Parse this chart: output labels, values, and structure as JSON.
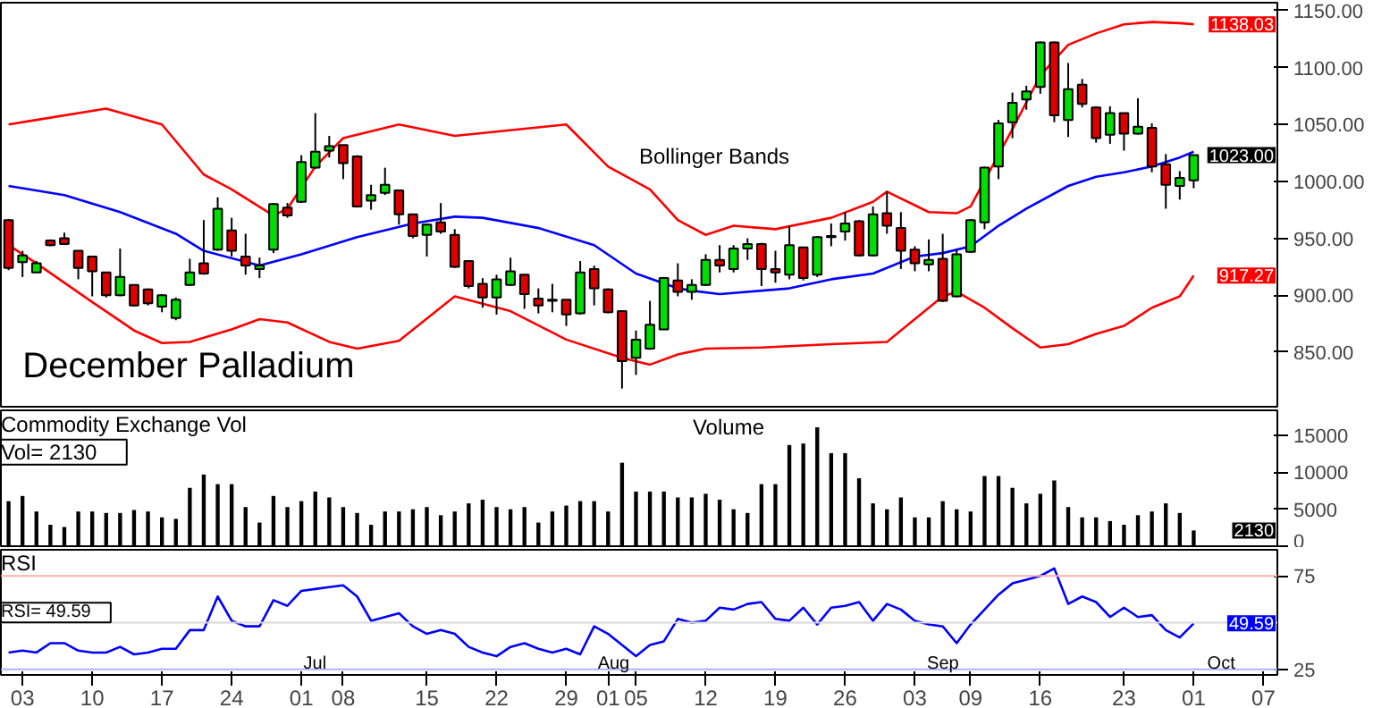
{
  "chart_data": [
    {
      "type": "candlestick",
      "title": "December Palladium",
      "tick_labels": "y",
      "grid": false,
      "categories": [
        null,
        "03",
        null,
        null,
        null,
        null,
        "10",
        null,
        null,
        null,
        null,
        "17",
        null,
        null,
        null,
        null,
        "24",
        null,
        null,
        null,
        null,
        "01",
        null,
        null,
        "08",
        null,
        null,
        null,
        null,
        null,
        "15",
        null,
        null,
        null,
        null,
        "22",
        null,
        null,
        null,
        null,
        "29",
        null,
        null,
        "01",
        null,
        "05",
        null,
        null,
        null,
        null,
        "12",
        null,
        null,
        null,
        null,
        "19",
        null,
        null,
        null,
        null,
        "26",
        null,
        null,
        null,
        null,
        "03",
        null,
        null,
        null,
        "09",
        null,
        null,
        null,
        null,
        "16",
        null,
        null,
        null,
        null,
        null,
        "23",
        null,
        null,
        null,
        null,
        "01",
        null,
        null,
        null,
        null,
        "07"
      ],
      "ohlc": [
        [
          966,
          967,
          922,
          924
        ],
        [
          929,
          939,
          916,
          935
        ],
        [
          920,
          930,
          920,
          928
        ],
        [
          948,
          949,
          943,
          944
        ],
        [
          950,
          955,
          944,
          945
        ],
        [
          939,
          939,
          914,
          924
        ],
        [
          934,
          934,
          899,
          921
        ],
        [
          920,
          920,
          898,
          900
        ],
        [
          900,
          941,
          899,
          916
        ],
        [
          909,
          909,
          890,
          891
        ],
        [
          905,
          906,
          891,
          893
        ],
        [
          890,
          901,
          885,
          900
        ],
        [
          880,
          898,
          878,
          896
        ],
        [
          909,
          932,
          908,
          920
        ],
        [
          928,
          966,
          918,
          919
        ],
        [
          940,
          986,
          939,
          976
        ],
        [
          957,
          968,
          934,
          939
        ],
        [
          934,
          954,
          918,
          926
        ],
        [
          923,
          933,
          915,
          926
        ],
        [
          940,
          981,
          937,
          980
        ],
        [
          977,
          981,
          968,
          970
        ],
        [
          982,
          1023,
          981,
          1017
        ],
        [
          1012,
          1060,
          1011,
          1026
        ],
        [
          1027,
          1040,
          1021,
          1031
        ],
        [
          1032,
          1032,
          1002,
          1016
        ],
        [
          1022,
          1023,
          977,
          978
        ],
        [
          983,
          997,
          975,
          988
        ],
        [
          990,
          1012,
          988,
          997
        ],
        [
          992,
          992,
          962,
          971
        ],
        [
          971,
          971,
          950,
          952
        ],
        [
          953,
          963,
          934,
          962
        ],
        [
          964,
          981,
          954,
          956
        ],
        [
          953,
          958,
          924,
          925
        ],
        [
          930,
          930,
          906,
          908
        ],
        [
          910,
          915,
          889,
          898
        ],
        [
          898,
          918,
          883,
          914
        ],
        [
          909,
          933,
          908,
          921
        ],
        [
          918,
          918,
          888,
          901
        ],
        [
          897,
          906,
          884,
          891
        ],
        [
          895,
          910,
          885,
          896
        ],
        [
          896,
          896,
          873,
          883
        ],
        [
          884,
          930,
          883,
          920
        ],
        [
          923,
          926,
          891,
          906
        ],
        [
          905,
          906,
          884,
          885
        ],
        [
          886,
          886,
          818,
          842
        ],
        [
          845,
          869,
          830,
          861
        ],
        [
          853,
          895,
          852,
          874
        ],
        [
          870,
          916,
          870,
          915
        ],
        [
          913,
          928,
          899,
          903
        ],
        [
          903,
          914,
          896,
          909
        ],
        [
          909,
          936,
          908,
          931
        ],
        [
          931,
          944,
          920,
          926
        ],
        [
          923,
          944,
          920,
          941
        ],
        [
          941,
          950,
          931,
          945
        ],
        [
          945,
          946,
          908,
          923
        ],
        [
          923,
          939,
          911,
          920
        ],
        [
          918,
          961,
          914,
          944
        ],
        [
          942,
          942,
          913,
          915
        ],
        [
          918,
          952,
          916,
          951
        ],
        [
          951,
          963,
          943,
          952
        ],
        [
          956,
          973,
          948,
          963
        ],
        [
          965,
          966,
          934,
          935
        ],
        [
          935,
          978,
          934,
          971
        ],
        [
          972,
          991,
          954,
          961
        ],
        [
          959,
          973,
          923,
          939
        ],
        [
          940,
          943,
          921,
          928
        ],
        [
          927,
          949,
          921,
          931
        ],
        [
          932,
          954,
          894,
          895
        ],
        [
          899,
          940,
          898,
          936
        ],
        [
          938,
          967,
          937,
          966
        ],
        [
          964,
          1013,
          958,
          1012
        ],
        [
          1013,
          1054,
          1002,
          1051
        ],
        [
          1052,
          1078,
          1038,
          1069
        ],
        [
          1072,
          1084,
          1063,
          1079
        ],
        [
          1083,
          1123,
          1077,
          1122
        ],
        [
          1122,
          1123,
          1052,
          1058
        ],
        [
          1054,
          1104,
          1039,
          1081
        ],
        [
          1085,
          1090,
          1065,
          1068
        ],
        [
          1065,
          1066,
          1034,
          1038
        ],
        [
          1041,
          1066,
          1033,
          1060
        ],
        [
          1060,
          1060,
          1027,
          1042
        ],
        [
          1042,
          1073,
          1041,
          1048
        ],
        [
          1047,
          1051,
          1008,
          1013
        ],
        [
          1015,
          1024,
          976,
          997
        ],
        [
          996,
          1009,
          984,
          1003
        ],
        [
          1001,
          1023,
          994,
          1023
        ],
        null,
        null,
        null,
        null,
        null
      ],
      "colors": [
        "#dd0000",
        "#00dd00",
        "#00dd00",
        "#dd0000",
        "#dd0000",
        "#dd0000",
        "#dd0000",
        "#dd0000",
        "#00dd00",
        "#dd0000",
        "#dd0000",
        "#00dd00",
        "#00dd00",
        "#00dd00",
        "#dd0000",
        "#00dd00",
        "#dd0000",
        "#dd0000",
        "#00dd00",
        "#00dd00",
        "#dd0000",
        "#00dd00",
        "#00dd00",
        "#00dd00",
        "#dd0000",
        "#dd0000",
        "#00dd00",
        "#00dd00",
        "#dd0000",
        "#dd0000",
        "#00dd00",
        "#dd0000",
        "#dd0000",
        "#dd0000",
        "#dd0000",
        "#00dd00",
        "#00dd00",
        "#dd0000",
        "#dd0000",
        "#00dd00",
        "#dd0000",
        "#00dd00",
        "#dd0000",
        "#dd0000",
        "#dd0000",
        "#00dd00",
        "#00dd00",
        "#00dd00",
        "#dd0000",
        "#00dd00",
        "#00dd00",
        "#dd0000",
        "#00dd00",
        "#00dd00",
        "#dd0000",
        "#dd0000",
        "#00dd00",
        "#dd0000",
        "#00dd00",
        "#00dd00",
        "#00dd00",
        "#dd0000",
        "#00dd00",
        "#dd0000",
        "#dd0000",
        "#dd0000",
        "#00dd00",
        "#dd0000",
        "#00dd00",
        "#00dd00",
        "#00dd00",
        "#00dd00",
        "#00dd00",
        "#00dd00",
        "#00dd00",
        "#dd0000",
        "#00dd00",
        "#dd0000",
        "#dd0000",
        "#00dd00",
        "#dd0000",
        "#00dd00",
        "#dd0000",
        "#dd0000",
        "#00dd00",
        "#00dd00",
        null,
        null,
        null,
        null,
        null
      ],
      "series": [
        {
          "type": "line",
          "color": "#ff0000",
          "values": [
            1050,
            null,
            1054,
            null,
            null,
            null,
            null,
            1064,
            null,
            null,
            null,
            1050,
            null,
            null,
            1006,
            null,
            993,
            null,
            null,
            970,
            976,
            null,
            1013,
            null,
            1038,
            null,
            null,
            null,
            1050,
            null,
            null,
            null,
            1040,
            null,
            null,
            null,
            null,
            null,
            null,
            null,
            1050,
            null,
            null,
            1013,
            null,
            null,
            993,
            null,
            966,
            null,
            953,
            null,
            961,
            null,
            null,
            958,
            null,
            null,
            null,
            968,
            null,
            null,
            982,
            991,
            null,
            null,
            973,
            null,
            972,
            978,
            null,
            null,
            1046,
            null,
            1093,
            null,
            1120,
            null,
            1130,
            null,
            1138,
            null,
            1140,
            null,
            1139,
            1138.03,
            null,
            null,
            null,
            null,
            null
          ]
        },
        {
          "type": "line",
          "color": "#0000ff",
          "values": [
            996,
            null,
            null,
            null,
            988,
            null,
            null,
            null,
            973,
            null,
            null,
            null,
            954,
            null,
            939,
            null,
            null,
            null,
            926,
            null,
            null,
            936,
            null,
            null,
            null,
            951,
            null,
            null,
            null,
            963,
            null,
            null,
            969,
            null,
            968,
            null,
            null,
            null,
            959,
            null,
            null,
            null,
            944,
            null,
            null,
            919,
            null,
            null,
            906,
            904,
            null,
            901,
            null,
            null,
            null,
            null,
            906,
            null,
            null,
            914,
            null,
            null,
            919,
            null,
            null,
            934,
            null,
            937,
            null,
            943,
            null,
            961,
            null,
            976,
            null,
            null,
            996,
            null,
            1004,
            null,
            1008,
            null,
            1013,
            null,
            1021,
            1026,
            null,
            null,
            null,
            null,
            null
          ]
        },
        {
          "type": "line",
          "color": "#ff0000",
          "values": [
            944,
            null,
            928,
            null,
            null,
            null,
            894,
            null,
            null,
            869,
            null,
            858,
            null,
            859,
            null,
            null,
            870,
            null,
            879,
            null,
            876,
            null,
            null,
            859,
            null,
            853,
            null,
            null,
            860,
            null,
            null,
            null,
            899,
            null,
            null,
            null,
            886,
            null,
            null,
            null,
            861,
            null,
            null,
            null,
            845,
            null,
            839,
            null,
            848,
            null,
            853,
            null,
            null,
            null,
            854,
            null,
            null,
            null,
            null,
            857,
            null,
            null,
            null,
            859,
            null,
            879,
            null,
            899,
            903,
            null,
            889,
            null,
            871,
            null,
            854,
            null,
            857,
            null,
            866,
            null,
            873,
            null,
            889,
            null,
            899,
            917.27,
            null,
            null,
            null,
            null,
            null
          ]
        }
      ],
      "ylim": [
        802,
        1157
      ],
      "yticks": [
        {
          "value": 850,
          "label": "850.00"
        },
        {
          "value": 900,
          "label": "900.00"
        },
        {
          "value": 950,
          "label": "950.00"
        },
        {
          "value": 1000,
          "label": "1000.00"
        },
        {
          "value": 1050,
          "label": "1050.00"
        },
        {
          "value": 1100,
          "label": "1100.00"
        },
        {
          "value": 1150,
          "label": "1150.00"
        }
      ],
      "annotations": [
        "Bollinger Bands",
        "1138.03",
        "1023.00",
        "917.27"
      ]
    },
    {
      "type": "bar",
      "title": "Commodity Exchange Vol",
      "tick_labels": "y",
      "grid": false,
      "color": "#000000",
      "categories": [
        null,
        "03",
        null,
        null,
        null,
        null,
        "10",
        null,
        null,
        null,
        null,
        "17",
        null,
        null,
        null,
        null,
        "24",
        null,
        null,
        null,
        null,
        "01",
        null,
        null,
        "08",
        null,
        null,
        null,
        null,
        null,
        "15",
        null,
        null,
        null,
        null,
        "22",
        null,
        null,
        null,
        null,
        "29",
        null,
        null,
        "01",
        null,
        "05",
        null,
        null,
        null,
        null,
        "12",
        null,
        null,
        null,
        null,
        "19",
        null,
        null,
        null,
        null,
        "26",
        null,
        null,
        null,
        null,
        "03",
        null,
        null,
        null,
        "09",
        null,
        null,
        null,
        null,
        "16",
        null,
        null,
        null,
        null,
        null,
        "23",
        null,
        null,
        null,
        null,
        "01",
        null,
        null,
        null,
        null,
        "07"
      ],
      "values": [
        6100,
        6800,
        4700,
        2900,
        2600,
        4700,
        4700,
        4500,
        4500,
        4900,
        4700,
        3900,
        3700,
        7900,
        9700,
        8400,
        8400,
        5300,
        3200,
        6800,
        5300,
        6100,
        7400,
        6600,
        5300,
        4500,
        2900,
        4700,
        4700,
        5000,
        5300,
        4200,
        4700,
        5800,
        6300,
        5300,
        5000,
        5300,
        3200,
        4700,
        5500,
        6100,
        6100,
        4700,
        11300,
        7400,
        7400,
        7400,
        6600,
        6600,
        7100,
        6300,
        5000,
        4500,
        8400,
        8400,
        13700,
        13900,
        16100,
        12600,
        12600,
        9200,
        5800,
        5000,
        6600,
        3900,
        3900,
        6100,
        5000,
        4700,
        9500,
        9500,
        7900,
        5800,
        7100,
        8900,
        5300,
        3900,
        3900,
        3400,
        2900,
        4200,
        4700,
        5800,
        4500,
        2130,
        null,
        null,
        null,
        null,
        null
      ],
      "ylim": [
        0,
        18400
      ],
      "yticks": [
        0,
        5000,
        10000,
        15000
      ],
      "annotations": [
        "Volume",
        "Vol=      2130",
        "2130"
      ]
    },
    {
      "type": "line",
      "title": "RSI",
      "grid": false,
      "categories": [
        null,
        "03",
        null,
        null,
        null,
        null,
        "10",
        null,
        null,
        null,
        null,
        "17",
        null,
        null,
        null,
        null,
        "24",
        null,
        null,
        null,
        null,
        "01",
        null,
        null,
        "08",
        null,
        null,
        null,
        null,
        null,
        "15",
        null,
        null,
        null,
        null,
        "22",
        null,
        null,
        null,
        null,
        "29",
        null,
        null,
        "01",
        null,
        "05",
        null,
        null,
        null,
        null,
        "12",
        null,
        null,
        null,
        null,
        "19",
        null,
        null,
        null,
        null,
        "26",
        null,
        null,
        null,
        null,
        "03",
        null,
        null,
        null,
        "09",
        null,
        null,
        null,
        null,
        "16",
        null,
        null,
        null,
        null,
        null,
        "23",
        null,
        null,
        null,
        null,
        "01",
        null,
        null,
        null,
        null,
        "07"
      ],
      "series": [
        {
          "color": "#0000ff",
          "values": [
            34,
            35,
            34,
            39,
            39,
            35,
            34,
            34,
            37,
            33,
            34,
            36,
            36,
            46,
            46,
            64,
            51,
            48,
            48,
            62,
            59,
            67,
            68,
            69,
            70,
            64,
            51,
            53,
            55,
            48,
            44,
            46,
            44,
            37,
            34,
            32,
            37,
            39,
            36,
            34,
            36,
            33,
            48,
            44,
            38,
            32,
            38,
            40,
            52,
            50,
            51,
            58,
            57,
            60,
            61,
            52,
            51,
            58,
            49,
            58,
            59,
            61,
            51,
            60,
            57,
            51,
            49,
            48,
            39,
            49,
            57,
            65,
            71,
            73,
            75,
            79,
            60,
            64,
            61,
            53,
            58,
            53,
            54,
            46,
            42,
            49.59,
            null,
            null,
            null,
            null,
            null
          ]
        }
      ],
      "ylim": [
        22,
        89
      ],
      "yticks": [
        25,
        75
      ],
      "ref_lines": [
        {
          "axis": "y",
          "value": 75,
          "color": "#ffb0b0"
        },
        {
          "axis": "y",
          "value": 50,
          "color": "#d8d8d8"
        },
        {
          "axis": "y",
          "value": 25,
          "color": "#b0b0ff"
        }
      ],
      "annotations": [
        "RSI=     49.59",
        "Jul",
        "Aug",
        "Sep",
        "Oct",
        "49.59"
      ]
    }
  ]
}
